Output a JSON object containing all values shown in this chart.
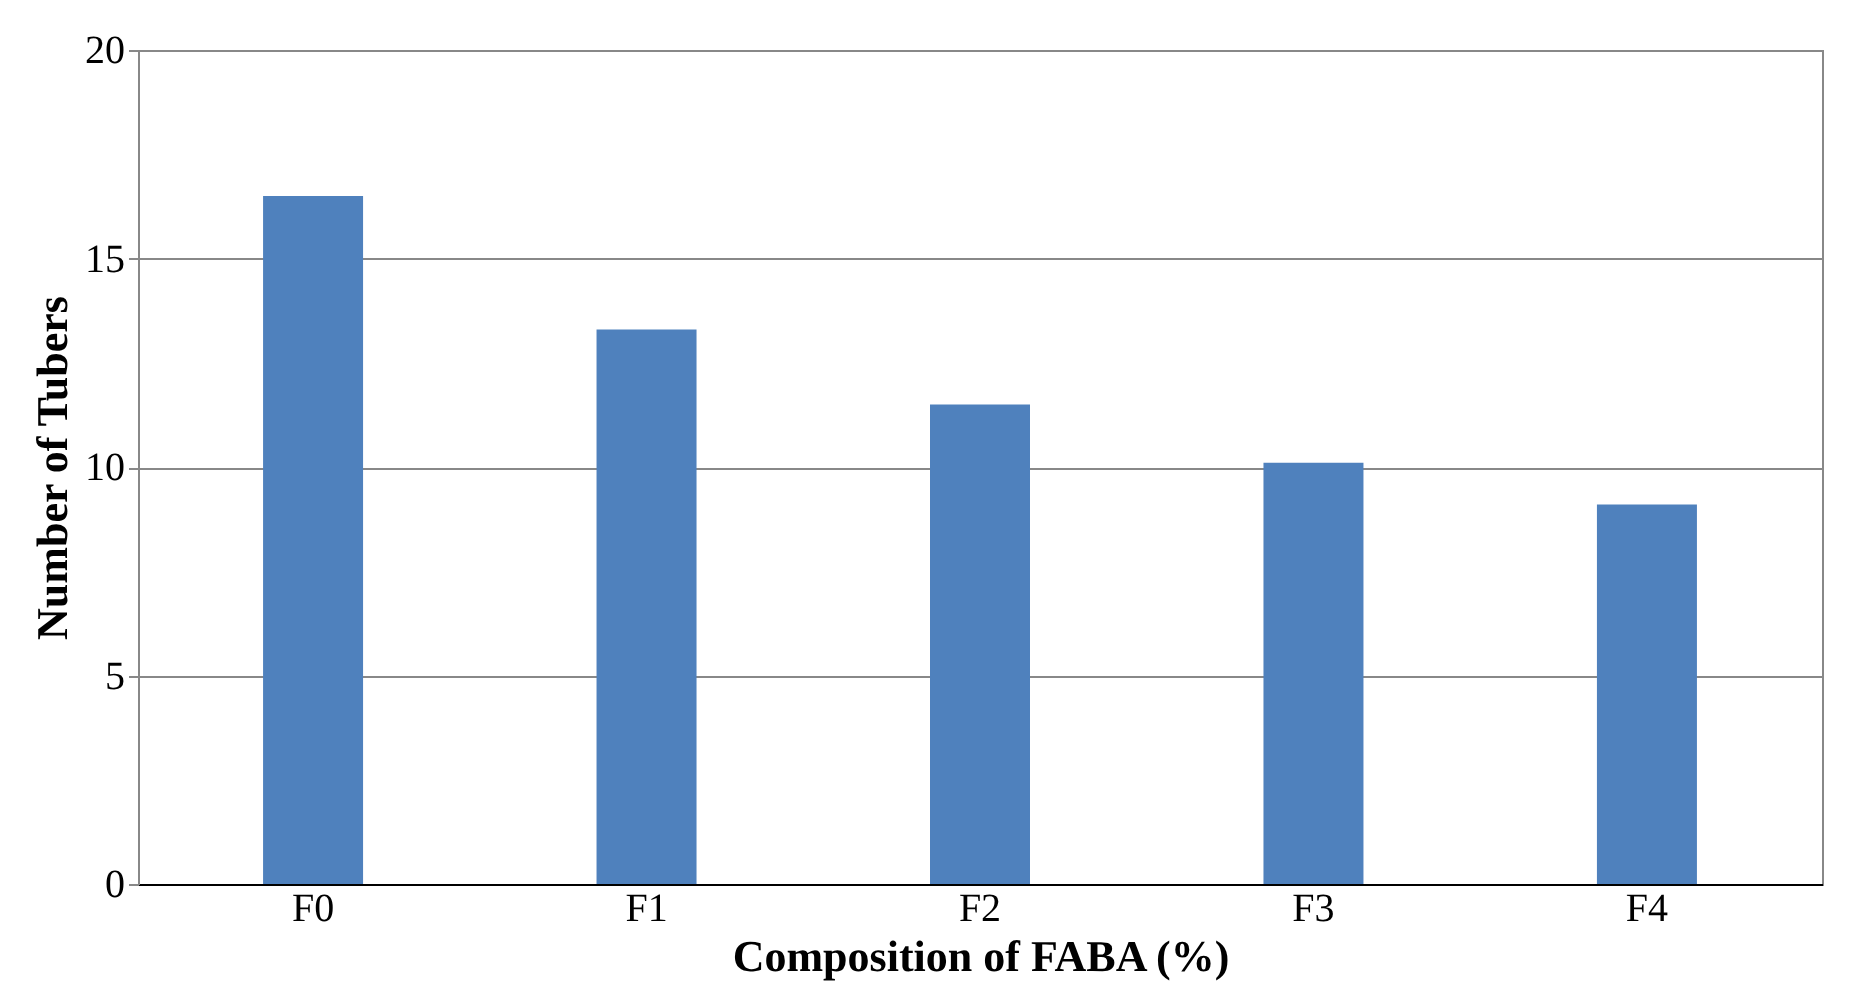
{
  "chart_data": {
    "type": "bar",
    "xlabel": "Composition of FABA (%)",
    "ylabel": "Number of Tubers",
    "categories": [
      "F0",
      "F1",
      "F2",
      "F3",
      "F4"
    ],
    "values": [
      16.5,
      13.3,
      11.5,
      10.1,
      9.1
    ],
    "color": "#4f81bd",
    "ylim": [
      0,
      20
    ],
    "yticks": [
      0,
      5,
      10,
      15,
      20
    ],
    "grid": "y"
  }
}
